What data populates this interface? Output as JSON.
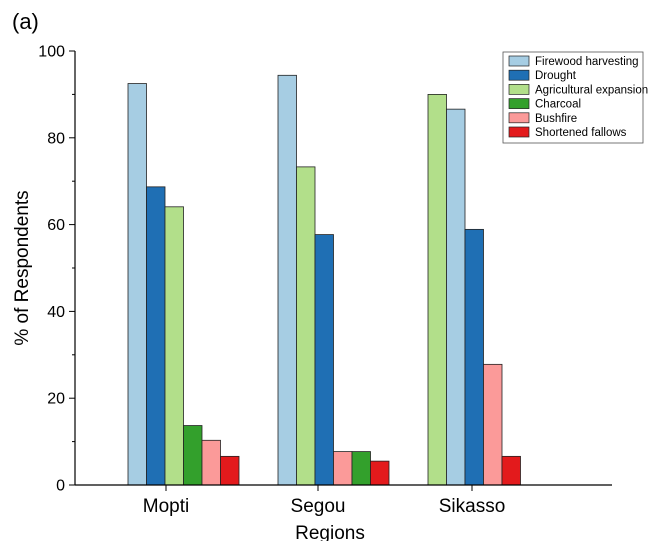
{
  "panel_label": "(a)",
  "chart_data": {
    "type": "bar",
    "xlabel": "Regions",
    "ylabel": "% of Respondents",
    "ylim": [
      0,
      100
    ],
    "yticks": [
      0,
      20,
      40,
      60,
      80,
      100
    ],
    "legend_position": "top-right",
    "grid": false,
    "groups": [
      {
        "category": "Mopti",
        "bars": [
          {
            "series": "Firewood harvesting",
            "value": 92.5
          },
          {
            "series": "Drought",
            "value": 68.7
          },
          {
            "series": "Agricultural expansion",
            "value": 64.1
          },
          {
            "series": "Charcoal",
            "value": 13.7
          },
          {
            "series": "Bushfire",
            "value": 10.3
          },
          {
            "series": "Shortened fallows",
            "value": 6.6
          }
        ]
      },
      {
        "category": "Segou",
        "bars": [
          {
            "series": "Firewood harvesting",
            "value": 94.4
          },
          {
            "series": "Agricultural expansion",
            "value": 73.3
          },
          {
            "series": "Drought",
            "value": 57.7
          },
          {
            "series": "Bushfire",
            "value": 7.7
          },
          {
            "series": "Charcoal",
            "value": 7.7
          },
          {
            "series": "Shortened fallows",
            "value": 5.5
          }
        ]
      },
      {
        "category": "Sikasso",
        "bars": [
          {
            "series": "Agricultural expansion",
            "value": 90.0
          },
          {
            "series": "Firewood harvesting",
            "value": 86.6
          },
          {
            "series": "Drought",
            "value": 58.9
          },
          {
            "series": "Bushfire",
            "value": 27.8
          },
          {
            "series": "Shortened fallows",
            "value": 6.6
          }
        ]
      }
    ],
    "series": [
      {
        "name": "Firewood harvesting",
        "color": "#a6cde3"
      },
      {
        "name": "Drought",
        "color": "#1f6fb4"
      },
      {
        "name": "Agricultural expansion",
        "color": "#b2df8a"
      },
      {
        "name": "Charcoal",
        "color": "#33a02c"
      },
      {
        "name": "Bushfire",
        "color": "#fb9a99"
      },
      {
        "name": "Shortened fallows",
        "color": "#e31a1c"
      }
    ]
  }
}
